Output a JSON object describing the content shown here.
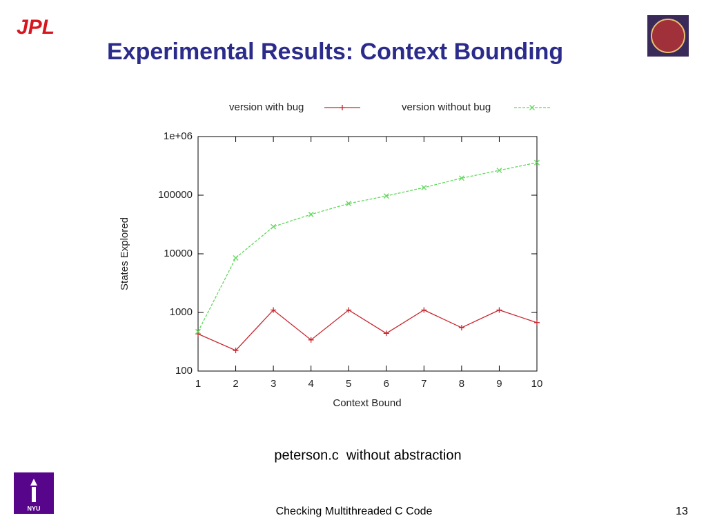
{
  "slide": {
    "logo_left": "JPL",
    "title": "Experimental Results: Context Bounding",
    "caption": "peterson.c  without abstraction",
    "logo_bottom": "NYU",
    "footer": "Checking Multithreaded C Code",
    "page_number": "13"
  },
  "chart_data": {
    "type": "line",
    "x_label": "Context Bound",
    "y_label": "States Explored",
    "x": [
      1,
      2,
      3,
      4,
      5,
      6,
      7,
      8,
      9,
      10
    ],
    "series": [
      {
        "name": "version with bug",
        "color": "#c8262e",
        "marker": "+",
        "values": [
          430,
          225,
          1100,
          340,
          1100,
          440,
          1100,
          550,
          1100,
          670
        ]
      },
      {
        "name": "version without bug",
        "color": "#5fd95a",
        "marker": "x",
        "values": [
          470,
          8500,
          29000,
          47000,
          72000,
          97000,
          135000,
          195000,
          265000,
          360000
        ]
      }
    ],
    "xlim": [
      1,
      10
    ],
    "xticks": [
      1,
      2,
      3,
      4,
      5,
      6,
      7,
      8,
      9,
      10
    ],
    "ylim": [
      100,
      1000000
    ],
    "yticks": [
      100,
      1000,
      10000,
      100000,
      {
        "value": 1000000,
        "label": "1e+06"
      }
    ],
    "ylog": true,
    "grid": false
  }
}
